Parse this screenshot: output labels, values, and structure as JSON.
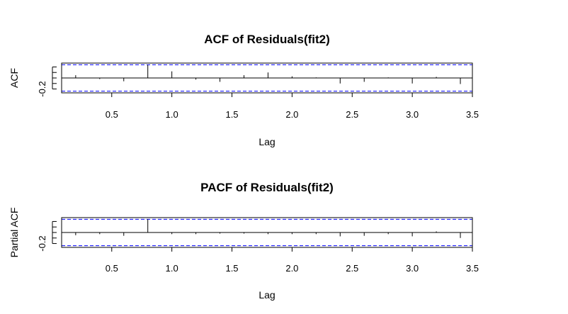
{
  "chart_data": [
    {
      "type": "bar",
      "title": "ACF of Residuals(fit2)",
      "xlabel": "Lag",
      "ylabel": "ACF",
      "x_ticks": [
        "0.5",
        "1.0",
        "1.5",
        "2.0",
        "2.5",
        "3.0",
        "3.5"
      ],
      "y_ticks": [
        "-0.2"
      ],
      "xlim": [
        0.083,
        3.5
      ],
      "ylim": [
        -0.27,
        0.27
      ],
      "confidence_bound": 0.24,
      "lags": [
        0.2,
        0.4,
        0.6,
        0.8,
        1.0,
        1.2,
        1.4,
        1.6,
        1.8,
        2.0,
        2.2,
        2.4,
        2.6,
        2.8,
        3.0,
        3.2,
        3.4
      ],
      "values": [
        0.05,
        -0.02,
        -0.06,
        0.24,
        0.12,
        -0.03,
        -0.07,
        0.05,
        0.1,
        0.03,
        0.01,
        -0.1,
        -0.07,
        0.01,
        -0.1,
        0.02,
        -0.11
      ]
    },
    {
      "type": "bar",
      "title": "PACF of Residuals(fit2)",
      "xlabel": "Lag",
      "ylabel": "Partial ACF",
      "x_ticks": [
        "0.5",
        "1.0",
        "1.5",
        "2.0",
        "2.5",
        "3.0",
        "3.5"
      ],
      "y_ticks": [
        "-0.2"
      ],
      "xlim": [
        0.083,
        3.5
      ],
      "ylim": [
        -0.27,
        0.27
      ],
      "confidence_bound": 0.24,
      "lags": [
        0.2,
        0.4,
        0.6,
        0.8,
        1.0,
        1.2,
        1.4,
        1.6,
        1.8,
        2.0,
        2.2,
        2.4,
        2.6,
        2.8,
        3.0,
        3.2,
        3.4
      ],
      "values": [
        -0.05,
        -0.03,
        -0.06,
        0.24,
        -0.03,
        -0.03,
        -0.02,
        -0.02,
        -0.03,
        -0.03,
        -0.03,
        -0.07,
        -0.06,
        -0.03,
        -0.07,
        0.02,
        -0.1
      ]
    }
  ],
  "colors": {
    "bound": "#0000ff",
    "axis": "#000000",
    "frame": "#000000"
  }
}
